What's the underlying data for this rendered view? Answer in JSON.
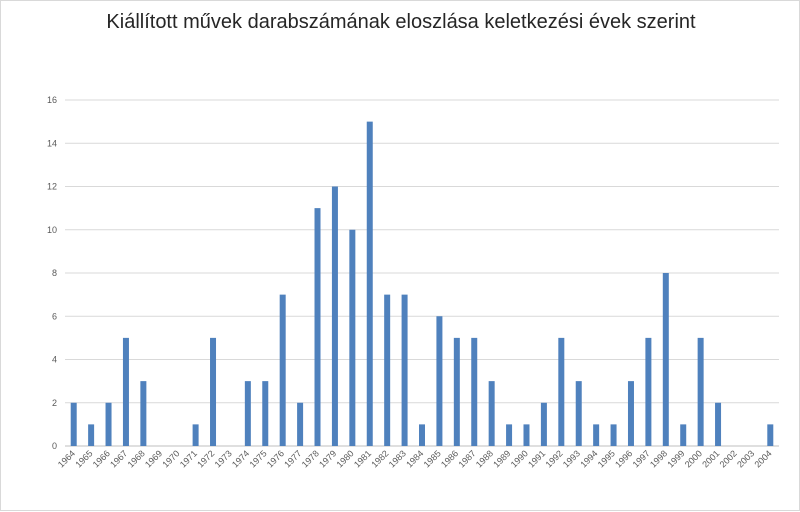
{
  "chart_data": {
    "type": "bar",
    "title": "Kiállított művek darabszámának eloszlása keletkezési évek szerint",
    "xlabel": "",
    "ylabel": "",
    "ylim": [
      0,
      16
    ],
    "yticks": [
      0,
      2,
      4,
      6,
      8,
      10,
      12,
      14,
      16
    ],
    "grid": true,
    "legend": "none",
    "bar_color": "#4f81bd",
    "grid_color": "#d9d9d9",
    "categories": [
      "1964",
      "1965",
      "1966",
      "1967",
      "1968",
      "1969",
      "1970",
      "1971",
      "1972",
      "1973",
      "1974",
      "1975",
      "1976",
      "1977",
      "1978",
      "1979",
      "1980",
      "1981",
      "1982",
      "1983",
      "1984",
      "1985",
      "1986",
      "1987",
      "1988",
      "1989",
      "1990",
      "1991",
      "1992",
      "1993",
      "1994",
      "1995",
      "1996",
      "1997",
      "1998",
      "1999",
      "2000",
      "2001",
      "2002",
      "2003",
      "2004"
    ],
    "values": [
      2,
      1,
      2,
      5,
      3,
      0,
      0,
      1,
      5,
      0,
      3,
      3,
      7,
      2,
      11,
      12,
      10,
      15,
      7,
      7,
      1,
      6,
      5,
      5,
      3,
      1,
      1,
      2,
      5,
      3,
      1,
      1,
      3,
      5,
      8,
      1,
      5,
      2,
      0,
      0,
      1
    ]
  }
}
